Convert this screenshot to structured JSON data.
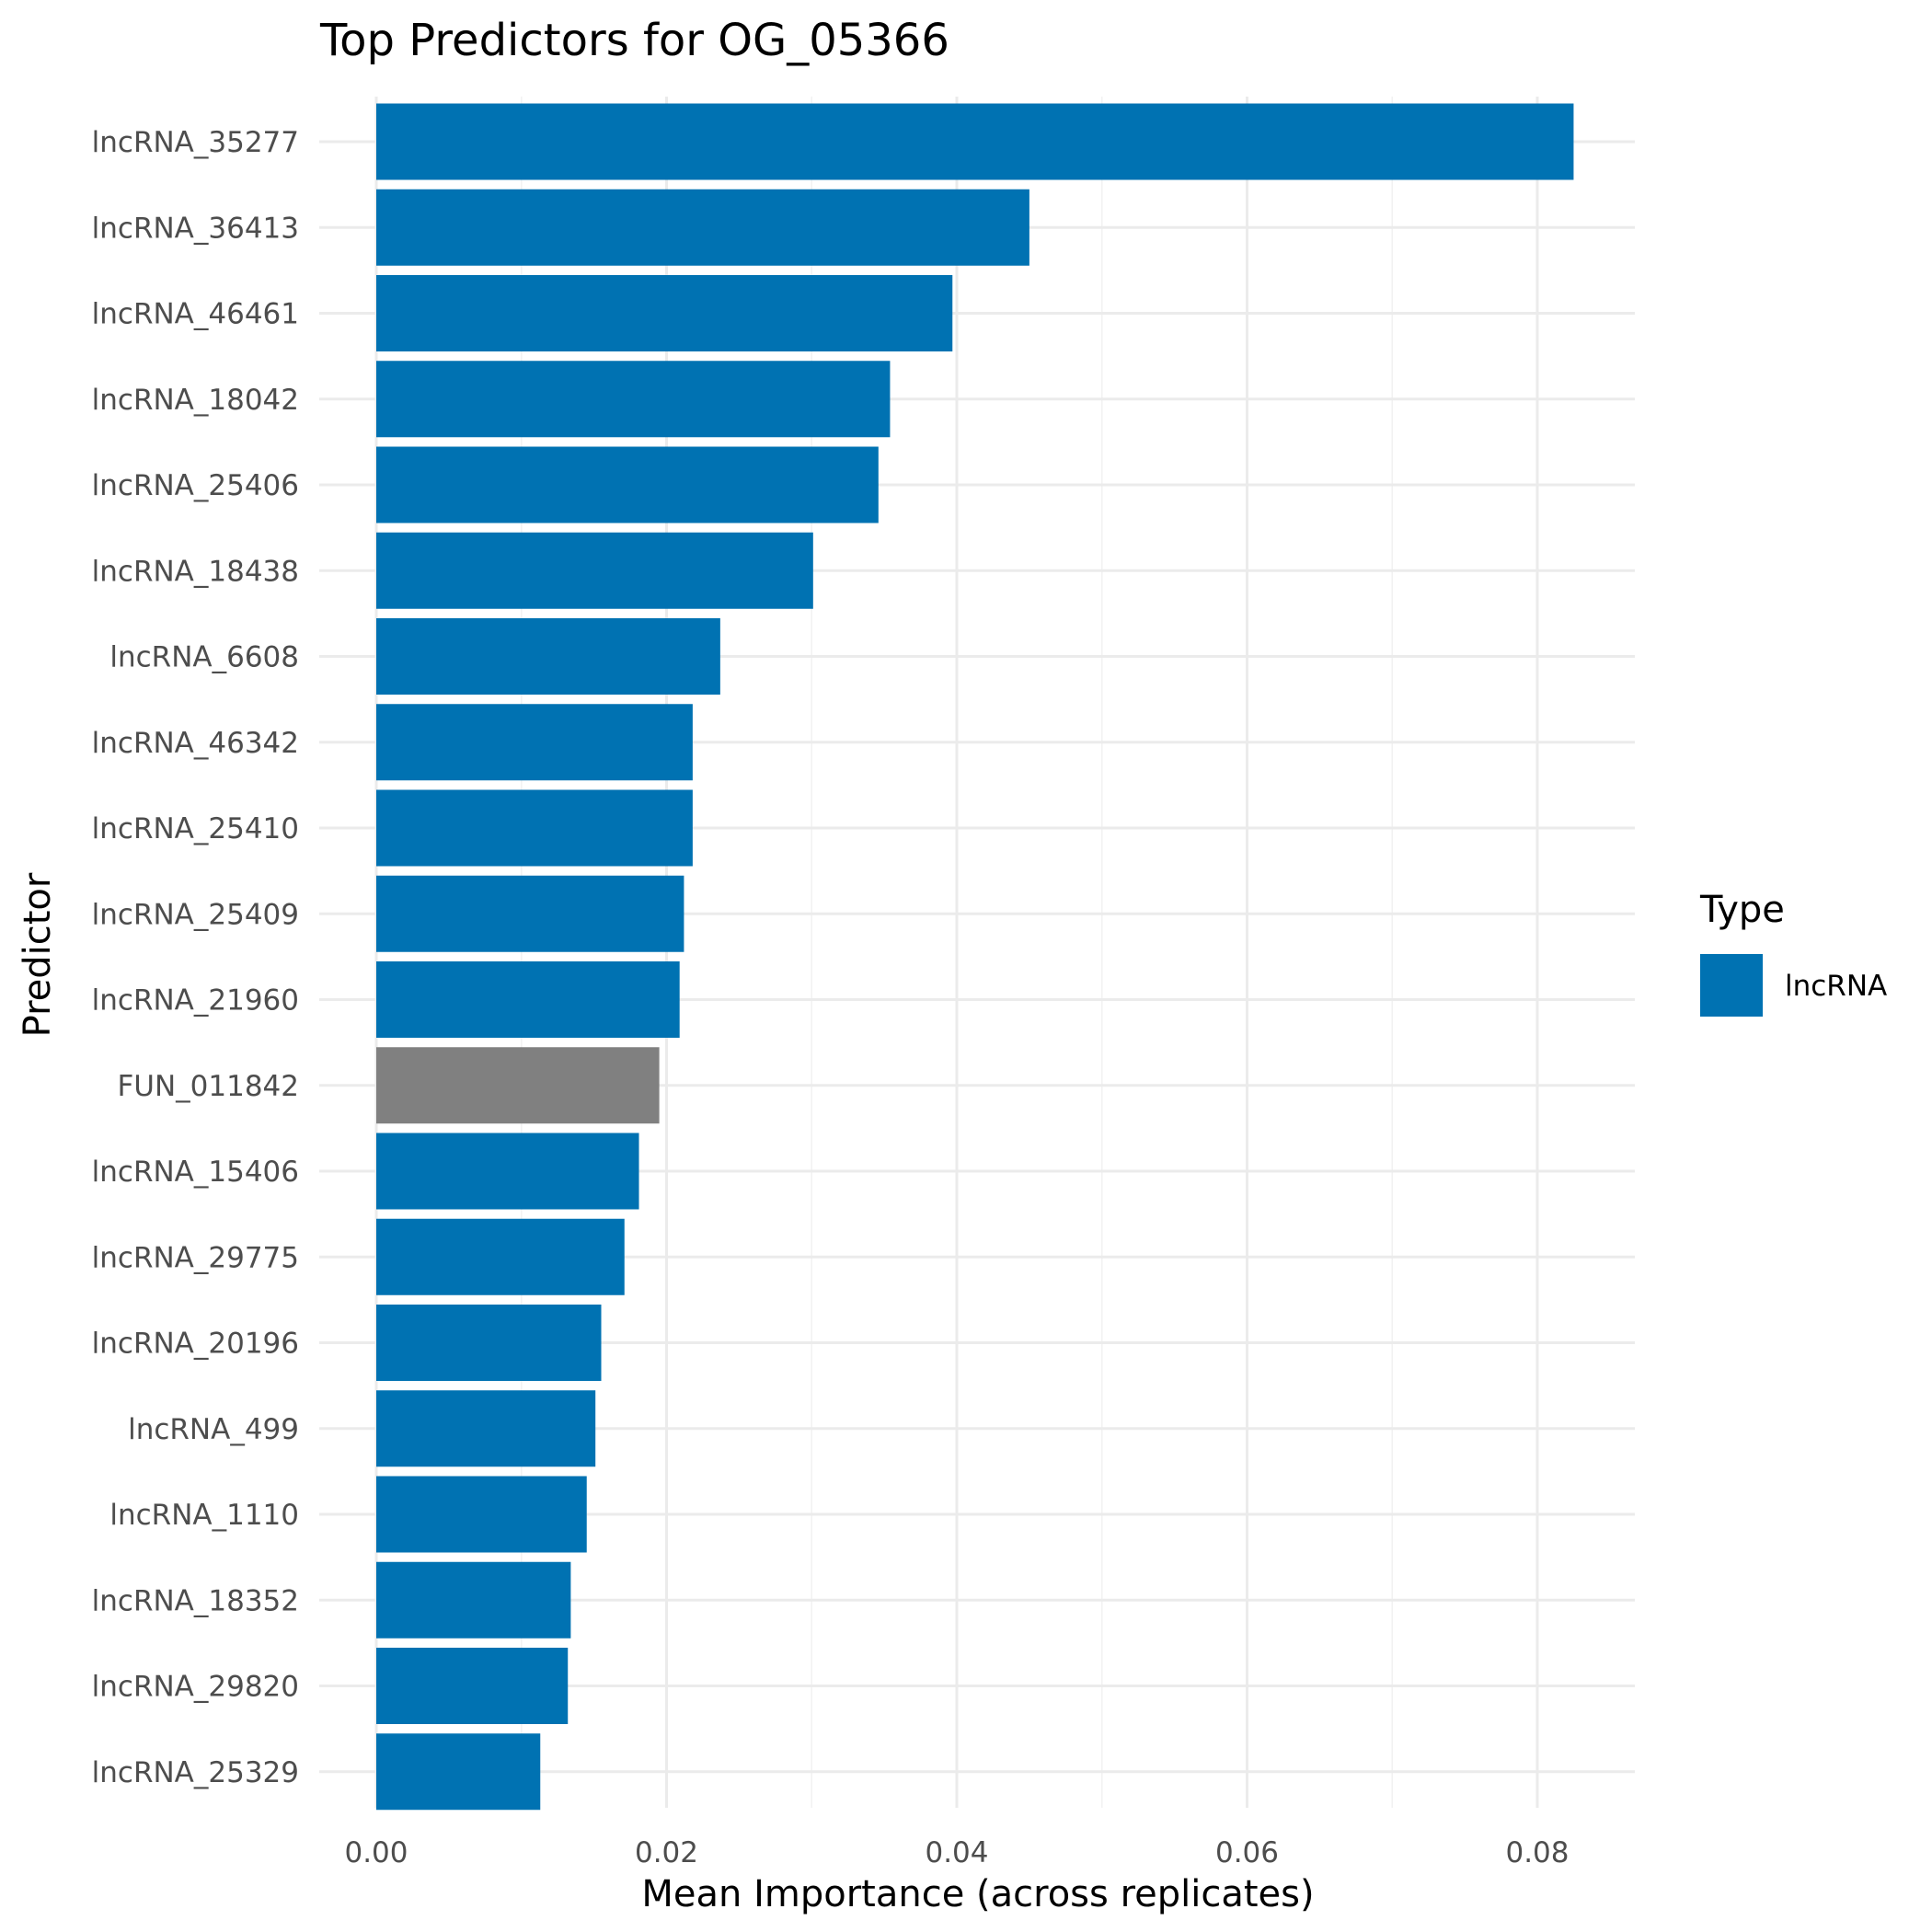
{
  "chart_data": {
    "type": "bar",
    "orientation": "horizontal",
    "title": "Top Predictors for OG_05366",
    "xlabel": "Mean Importance (across replicates)",
    "ylabel": "Predictor",
    "xlim": [
      0,
      0.0865
    ],
    "xticks": [
      0.0,
      0.02,
      0.04,
      0.06,
      0.08
    ],
    "xtick_labels": [
      "0.00",
      "0.02",
      "0.04",
      "0.06",
      "0.08"
    ],
    "grid": true,
    "legend": {
      "title": "Type",
      "placement": "right",
      "entries": [
        {
          "label": "lncRNA",
          "color": "#0072B2"
        }
      ]
    },
    "categories": [
      "lncRNA_35277",
      "lncRNA_36413",
      "lncRNA_46461",
      "lncRNA_18042",
      "lncRNA_25406",
      "lncRNA_18438",
      "lncRNA_6608",
      "lncRNA_46342",
      "lncRNA_25410",
      "lncRNA_25409",
      "lncRNA_21960",
      "FUN_011842",
      "lncRNA_15406",
      "lncRNA_29775",
      "lncRNA_20196",
      "lncRNA_499",
      "lncRNA_1110",
      "lncRNA_18352",
      "lncRNA_29820",
      "lncRNA_25329"
    ],
    "values": [
      0.0825,
      0.045,
      0.0397,
      0.0354,
      0.0346,
      0.0301,
      0.0237,
      0.0218,
      0.0218,
      0.0212,
      0.0209,
      0.0195,
      0.0181,
      0.0171,
      0.0155,
      0.0151,
      0.0145,
      0.0134,
      0.0132,
      0.0113
    ],
    "bar_colors": [
      "#0072B2",
      "#0072B2",
      "#0072B2",
      "#0072B2",
      "#0072B2",
      "#0072B2",
      "#0072B2",
      "#0072B2",
      "#0072B2",
      "#0072B2",
      "#0072B2",
      "#808080",
      "#0072B2",
      "#0072B2",
      "#0072B2",
      "#0072B2",
      "#0072B2",
      "#0072B2",
      "#0072B2",
      "#0072B2"
    ],
    "colors": {
      "grid_major": "#EBEBEB",
      "grid_minor": "#F2F2F2",
      "tick_text": "#4D4D4D"
    }
  }
}
